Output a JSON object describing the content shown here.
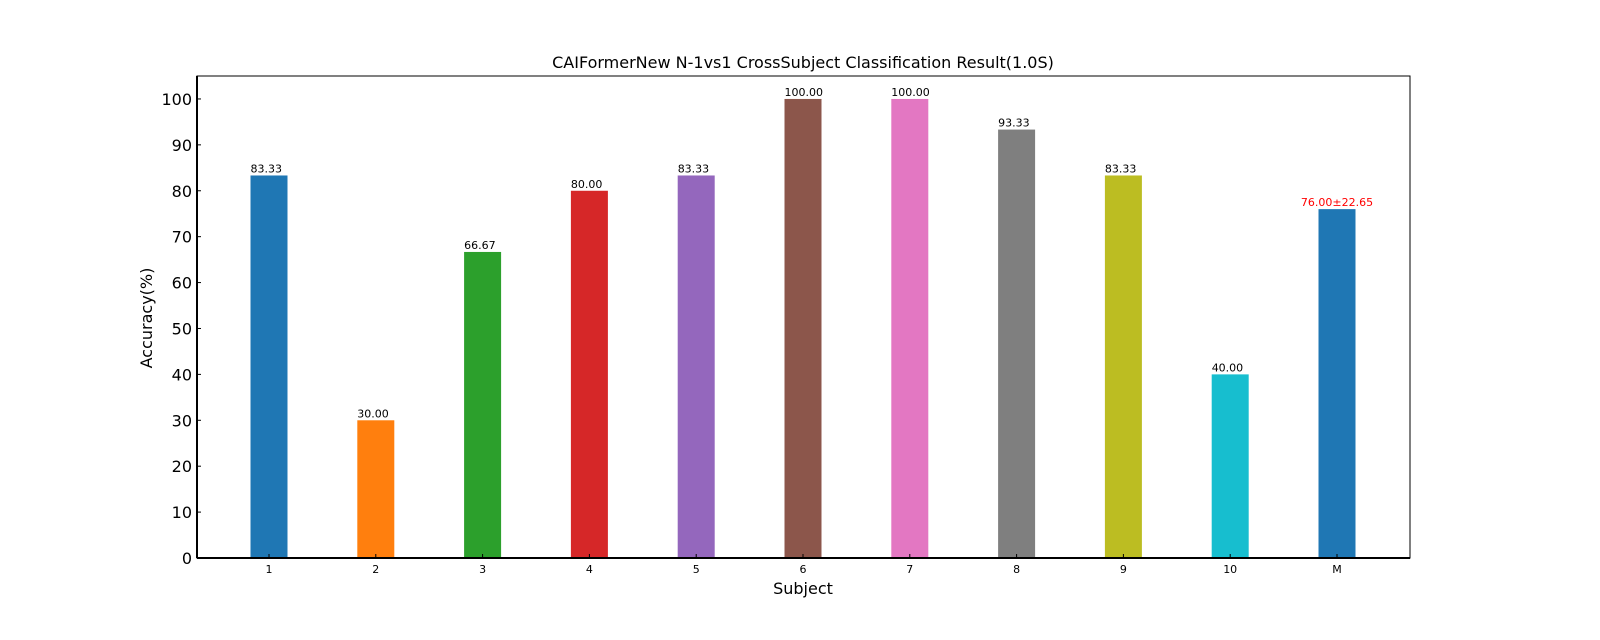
{
  "chart_data": {
    "type": "bar",
    "title": "CAIFormerNew N-1vs1 CrossSubject Classification Result(1.0S)",
    "xlabel": "Subject",
    "ylabel": "Accuracy(%)",
    "categories": [
      "1",
      "2",
      "3",
      "4",
      "5",
      "6",
      "7",
      "8",
      "9",
      "10",
      "M"
    ],
    "values": [
      83.33,
      30.0,
      66.67,
      80.0,
      83.33,
      100.0,
      100.0,
      93.33,
      83.33,
      40.0,
      76.0
    ],
    "data_labels": [
      "83.33",
      "30.00",
      "66.67",
      "80.00",
      "83.33",
      "100.00",
      "100.00",
      "93.33",
      "83.33",
      "40.00",
      "76.00±22.65"
    ],
    "colors": [
      "#1f77b4",
      "#ff7f0e",
      "#2ca02c",
      "#d62728",
      "#9467bd",
      "#8c564b",
      "#e377c2",
      "#7f7f7f",
      "#bcbd22",
      "#17becf",
      "#1f77b4"
    ],
    "highlight_label_color": "#ff0000",
    "ylim": [
      0,
      105
    ],
    "yticks": [
      0,
      10,
      20,
      30,
      40,
      50,
      60,
      70,
      80,
      90,
      100
    ],
    "grid": false,
    "legend": false
  }
}
